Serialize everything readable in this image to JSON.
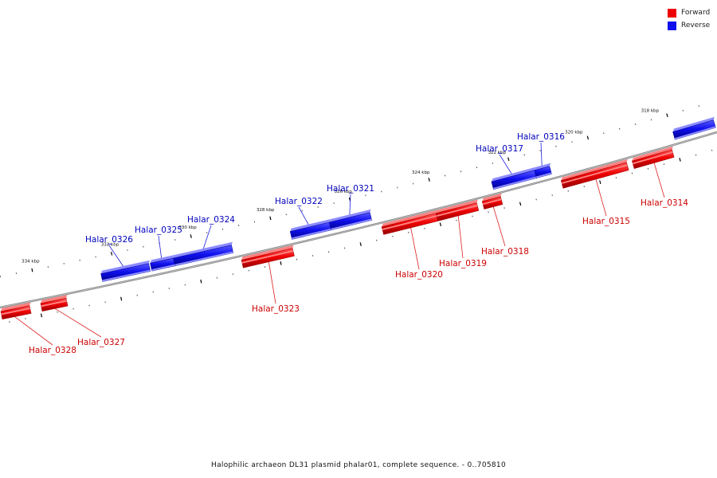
{
  "colors": {
    "forward": "#ee0000",
    "reverse": "#1010ee",
    "forward_label": "#cc0000",
    "reverse_label": "#0000bb",
    "backbone": "#888888"
  },
  "legend": {
    "forward_label": "Forward",
    "reverse_label": "Reverse"
  },
  "caption": "Halophilic archaeon DL31 plasmid phalar01, complete sequence. - 0..705810",
  "scale_labels": [
    "334 kbp",
    "332 kbp",
    "330 kbp",
    "328 kbp",
    "326 kbp",
    "324 kbp",
    "322 kbp",
    "320 kbp",
    "318 kbp"
  ],
  "genes": [
    {
      "name": "Halar_0328",
      "strand": "forward"
    },
    {
      "name": "Halar_0327",
      "strand": "forward"
    },
    {
      "name": "Halar_0326",
      "strand": "reverse"
    },
    {
      "name": "Halar_0325",
      "strand": "reverse"
    },
    {
      "name": "Halar_0324",
      "strand": "reverse"
    },
    {
      "name": "Halar_0323",
      "strand": "forward"
    },
    {
      "name": "Halar_0322",
      "strand": "reverse"
    },
    {
      "name": "Halar_0321",
      "strand": "reverse"
    },
    {
      "name": "Halar_0320",
      "strand": "forward"
    },
    {
      "name": "Halar_0319",
      "strand": "forward"
    },
    {
      "name": "Halar_0318",
      "strand": "forward"
    },
    {
      "name": "Halar_0317",
      "strand": "reverse"
    },
    {
      "name": "Halar_0316",
      "strand": "reverse"
    },
    {
      "name": "Halar_0315",
      "strand": "forward"
    },
    {
      "name": "Halar_0314",
      "strand": "forward"
    }
  ]
}
